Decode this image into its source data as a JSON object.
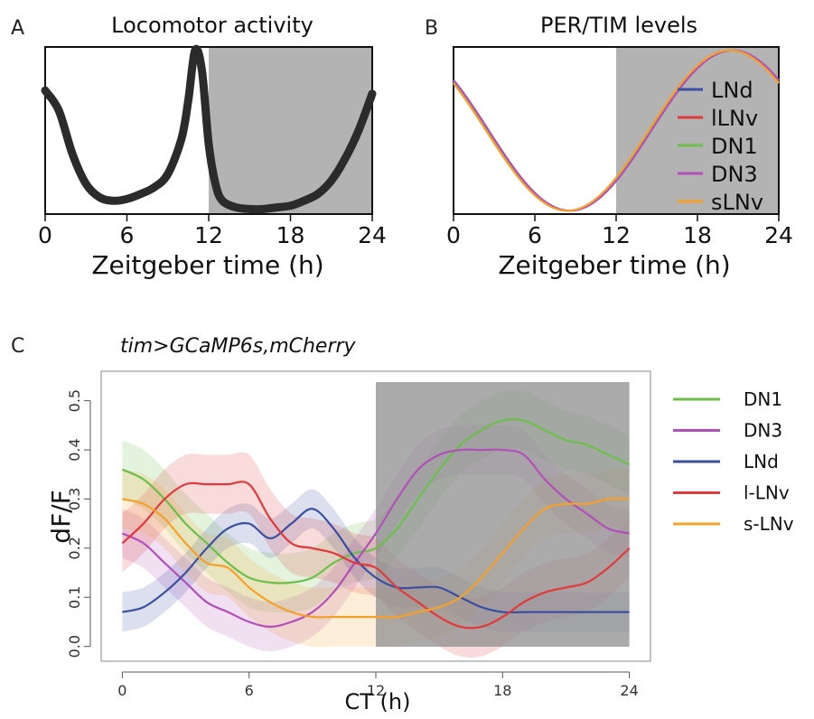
{
  "chart_data": [
    {
      "panel": "A",
      "type": "line",
      "title": "Locomotor activity",
      "xlabel": "Zeitgeber time (h)",
      "ylabel": "",
      "xlim": [
        0,
        24
      ],
      "ylim": [
        0,
        1
      ],
      "xticks": [
        "0",
        "6",
        "12",
        "18",
        "24"
      ],
      "shaded_region": [
        12,
        24
      ],
      "series": [
        {
          "color": "#2b2b2b",
          "x": [
            0,
            1,
            2,
            3,
            4,
            5,
            6,
            7,
            8,
            9,
            10,
            10.5,
            11,
            11.5,
            12,
            12.5,
            13,
            14,
            15,
            16,
            17,
            18,
            19,
            20,
            21,
            22,
            23,
            24
          ],
          "y": [
            0.74,
            0.62,
            0.36,
            0.18,
            0.1,
            0.08,
            0.09,
            0.12,
            0.16,
            0.24,
            0.45,
            0.68,
            0.98,
            0.86,
            0.42,
            0.18,
            0.08,
            0.04,
            0.03,
            0.03,
            0.04,
            0.05,
            0.08,
            0.12,
            0.2,
            0.33,
            0.5,
            0.72
          ]
        }
      ]
    },
    {
      "panel": "B",
      "type": "line",
      "title": "PER/TIM levels",
      "xlabel": "Zeitgeber time (h)",
      "ylabel": "",
      "xlim": [
        0,
        24
      ],
      "ylim": [
        0,
        1
      ],
      "xticks": [
        "0",
        "6",
        "12",
        "18",
        "24"
      ],
      "shaded_region": [
        12,
        24
      ],
      "legend_position": "right",
      "series": [
        {
          "name": "LNd",
          "color": "#3a4fa0",
          "phase": 0.0
        },
        {
          "name": "lLNv",
          "color": "#e03a3a",
          "phase": 0.06
        },
        {
          "name": "DN1",
          "color": "#6cbf4a",
          "phase": -0.05
        },
        {
          "name": "DN3",
          "color": "#b050b8",
          "phase": 0.1
        },
        {
          "name": "sLNv",
          "color": "#f5a02a",
          "phase": -0.1
        }
      ]
    },
    {
      "panel": "C",
      "type": "line",
      "title": "tim>GCaMP6s,mCherry",
      "xlabel": "CT (h)",
      "ylabel": "dF/F",
      "xlim": [
        -1,
        25
      ],
      "ylim": [
        -0.03,
        0.56
      ],
      "xticks": [
        0,
        6,
        12,
        18,
        24
      ],
      "yticks": [
        0.0,
        0.1,
        0.2,
        0.3,
        0.4,
        0.5
      ],
      "shaded_region": [
        12,
        24
      ],
      "legend_position": "right",
      "series": [
        {
          "name": "DN1",
          "color": "#6cbf4a",
          "x": [
            0,
            1,
            2,
            3,
            4,
            5,
            6,
            7,
            8,
            9,
            10,
            11,
            12,
            13,
            14,
            15,
            16,
            17,
            18,
            19,
            20,
            21,
            22,
            23,
            24
          ],
          "y": [
            0.36,
            0.34,
            0.3,
            0.25,
            0.21,
            0.17,
            0.14,
            0.13,
            0.13,
            0.14,
            0.17,
            0.19,
            0.2,
            0.24,
            0.3,
            0.36,
            0.41,
            0.44,
            0.46,
            0.46,
            0.44,
            0.42,
            0.41,
            0.39,
            0.37
          ],
          "band": 0.06
        },
        {
          "name": "DN3",
          "color": "#b050b8",
          "x": [
            0,
            1,
            2,
            3,
            4,
            5,
            6,
            7,
            8,
            9,
            10,
            11,
            12,
            13,
            14,
            15,
            16,
            17,
            18,
            19,
            20,
            21,
            22,
            23,
            24
          ],
          "y": [
            0.23,
            0.21,
            0.17,
            0.13,
            0.09,
            0.07,
            0.05,
            0.04,
            0.05,
            0.07,
            0.11,
            0.17,
            0.23,
            0.3,
            0.36,
            0.39,
            0.4,
            0.4,
            0.4,
            0.39,
            0.34,
            0.3,
            0.27,
            0.24,
            0.23
          ],
          "band": 0.05
        },
        {
          "name": "LNd",
          "color": "#3a4fa0",
          "x": [
            0,
            1,
            2,
            3,
            4,
            5,
            6,
            7,
            8,
            9,
            10,
            11,
            12,
            13,
            14,
            15,
            16,
            17,
            18,
            19,
            20,
            21,
            22,
            23,
            24
          ],
          "y": [
            0.07,
            0.08,
            0.11,
            0.15,
            0.2,
            0.24,
            0.25,
            0.22,
            0.25,
            0.28,
            0.24,
            0.18,
            0.14,
            0.12,
            0.12,
            0.12,
            0.1,
            0.08,
            0.07,
            0.07,
            0.07,
            0.07,
            0.07,
            0.07,
            0.07
          ],
          "band": 0.04
        },
        {
          "name": "l-LNv",
          "color": "#e03a3a",
          "x": [
            0,
            1,
            2,
            3,
            4,
            5,
            6,
            7,
            8,
            9,
            10,
            11,
            12,
            13,
            14,
            15,
            16,
            17,
            18,
            19,
            20,
            21,
            22,
            23,
            24
          ],
          "y": [
            0.21,
            0.25,
            0.3,
            0.33,
            0.33,
            0.33,
            0.33,
            0.26,
            0.21,
            0.2,
            0.19,
            0.17,
            0.16,
            0.12,
            0.09,
            0.06,
            0.04,
            0.04,
            0.06,
            0.09,
            0.11,
            0.12,
            0.13,
            0.16,
            0.2
          ],
          "band": 0.06
        },
        {
          "name": "s-LNv",
          "color": "#f5a02a",
          "x": [
            0,
            1,
            2,
            3,
            4,
            5,
            6,
            7,
            8,
            9,
            10,
            11,
            12,
            13,
            14,
            15,
            16,
            17,
            18,
            19,
            20,
            21,
            22,
            23,
            24
          ],
          "y": [
            0.3,
            0.29,
            0.26,
            0.21,
            0.17,
            0.16,
            0.12,
            0.09,
            0.07,
            0.06,
            0.06,
            0.06,
            0.06,
            0.06,
            0.07,
            0.08,
            0.1,
            0.14,
            0.19,
            0.24,
            0.28,
            0.29,
            0.29,
            0.3,
            0.3
          ],
          "band": 0.06
        }
      ]
    }
  ],
  "panels": {
    "a_letter": "A",
    "b_letter": "B",
    "c_letter": "C"
  }
}
